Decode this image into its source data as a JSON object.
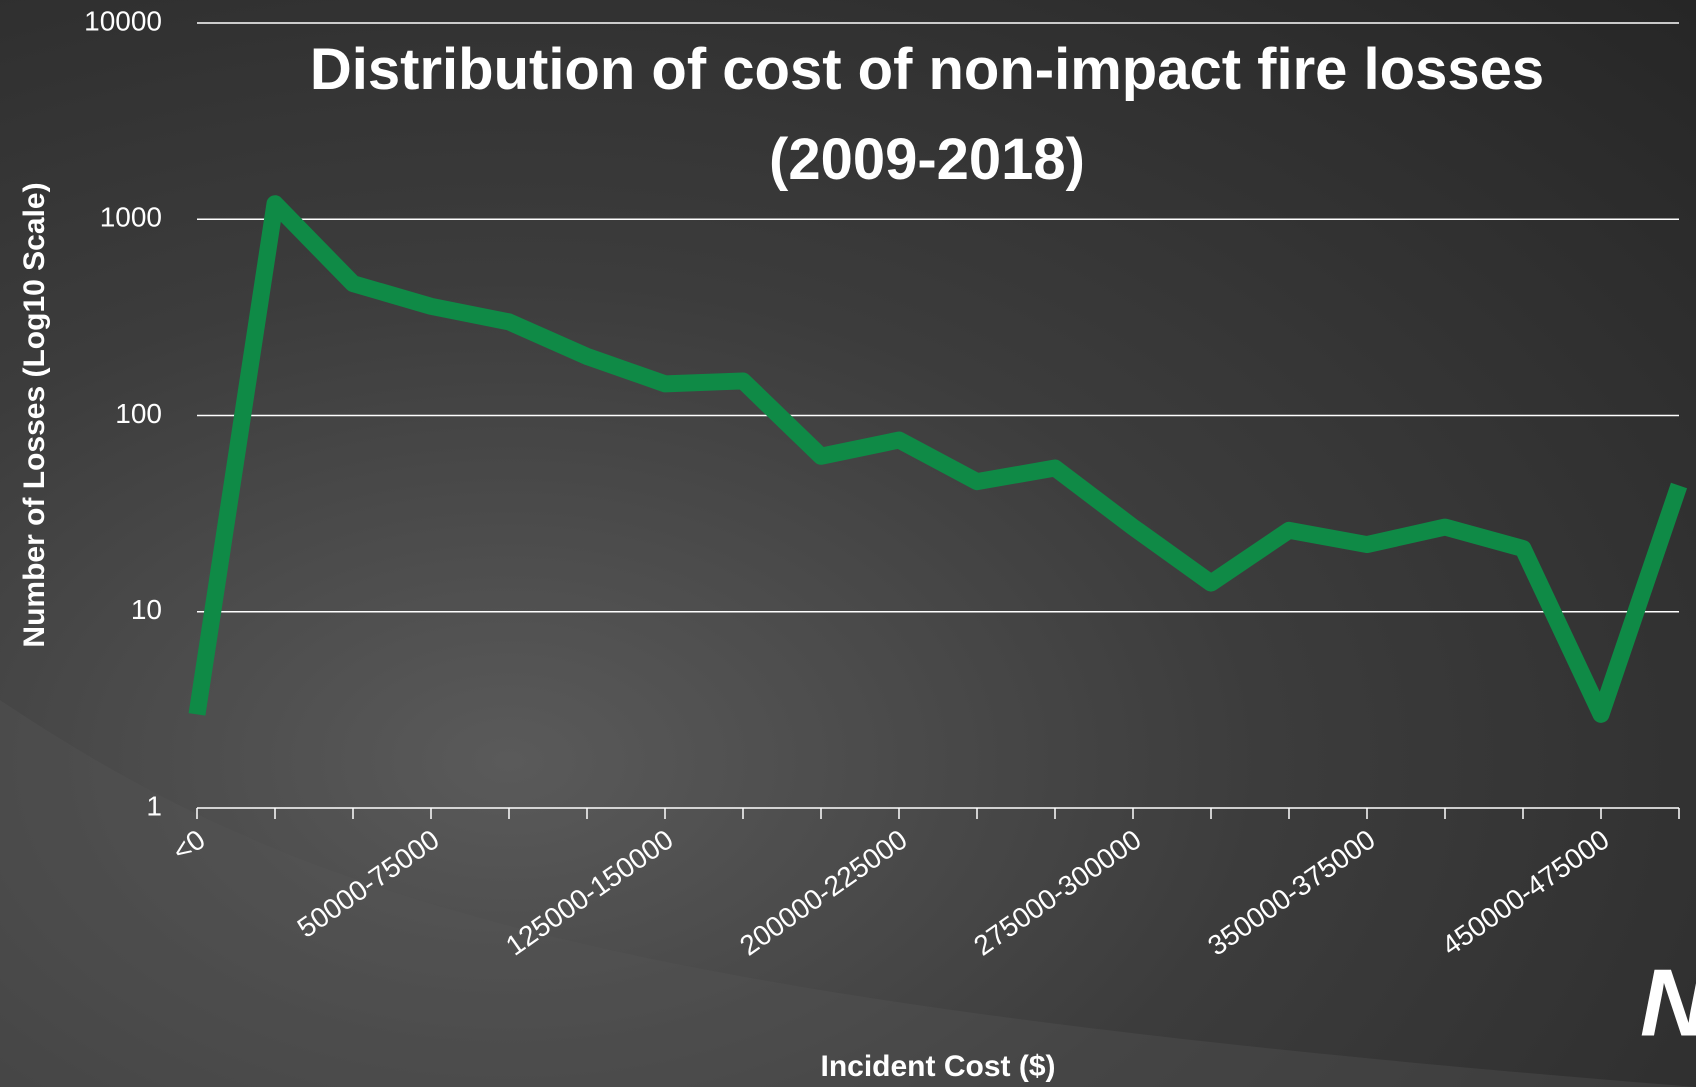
{
  "chart_data": {
    "type": "line",
    "title": "Distribution of cost of non-impact fire losses (2009-2018)",
    "x_label": "Incident Cost ($)",
    "y_label": "Number of Losses (Log10 Scale)",
    "categories": [
      "<0",
      null,
      null,
      "50000-75000",
      null,
      null,
      "125000-150000",
      null,
      null,
      "200000-225000",
      null,
      null,
      "275000-300000",
      null,
      null,
      "350000-375000",
      null,
      null,
      "450000-475000",
      null
    ],
    "series": [
      {
        "name": "Losses",
        "color": "#0f8a46",
        "values": [
          3,
          1200,
          470,
          360,
          300,
          200,
          145,
          150,
          62,
          75,
          46,
          54,
          27,
          14,
          26,
          22,
          27,
          21,
          3,
          44
        ]
      }
    ],
    "log_scale": true,
    "ylim": [
      1,
      10000
    ],
    "yticks": [
      1,
      10,
      100,
      1000,
      10000
    ],
    "grid": true,
    "logo": "NT"
  }
}
